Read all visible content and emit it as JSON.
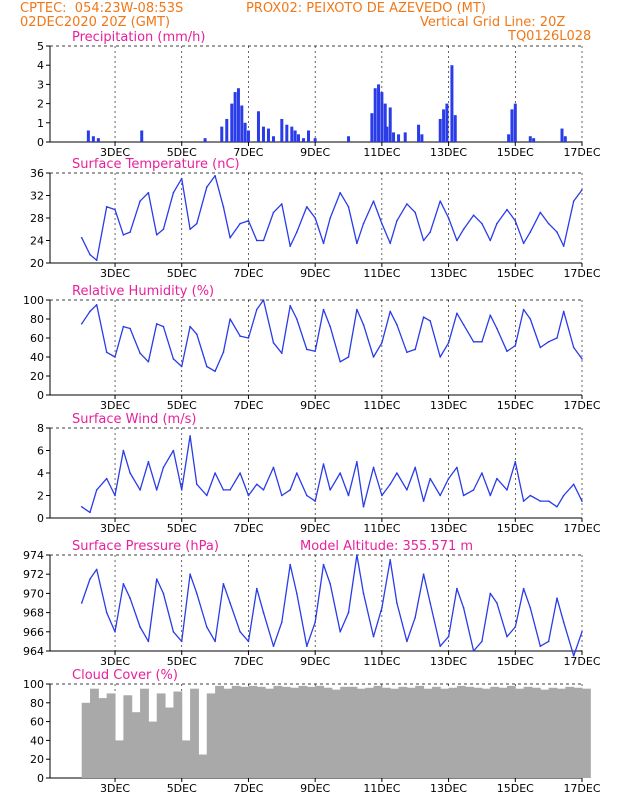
{
  "header": {
    "line1_left": "CPTEC:  054:23W-08:53S",
    "line1_right": "PROX02: PEIXOTO DE AZEVEDO (MT)",
    "line2_left": "02DEC2020 20Z (GMT)",
    "line2_right": "Vertical Grid Line: 20Z",
    "line3_right": "TQ0126L028"
  },
  "colors": {
    "header": "#f07818",
    "title": "#e8209c",
    "line": "#2a3ce8",
    "bar": "#2a3ce8",
    "cloud": "#a9a9a9"
  },
  "x_ticks": [
    "3DEC",
    "5DEC",
    "7DEC",
    "9DEC",
    "11DEC",
    "13DEC",
    "15DEC",
    "17DEC"
  ],
  "x_tick_days": [
    1,
    3,
    5,
    7,
    9,
    11,
    13,
    15
  ],
  "chart_data": [
    {
      "type": "bar",
      "title": "Precipitation (mm/h)",
      "ylim": [
        0,
        5
      ],
      "yticks": [
        "0",
        "1",
        "2",
        "3",
        "4",
        "5"
      ],
      "x_unit": "days since 02DEC2020 20Z",
      "x": [
        0.2,
        0.35,
        0.5,
        1.8,
        3.7,
        4.2,
        4.35,
        4.5,
        4.6,
        4.7,
        4.8,
        4.9,
        5.0,
        5.3,
        5.45,
        5.6,
        5.75,
        6.0,
        6.15,
        6.3,
        6.4,
        6.5,
        6.65,
        6.8,
        7.0,
        8.0,
        8.7,
        8.8,
        8.9,
        9.0,
        9.1,
        9.15,
        9.25,
        9.35,
        9.5,
        9.7,
        10.1,
        10.2,
        10.75,
        10.85,
        10.95,
        11.1,
        11.2,
        12.8,
        12.9,
        13.0,
        13.45,
        13.55,
        14.4,
        14.5
      ],
      "values": [
        0.6,
        0.3,
        0.2,
        0.6,
        0.2,
        0.8,
        1.2,
        2.0,
        2.6,
        2.8,
        1.9,
        1.0,
        0.6,
        1.6,
        0.8,
        0.7,
        0.3,
        1.2,
        0.9,
        0.8,
        0.6,
        0.4,
        0.2,
        0.6,
        0.2,
        0.3,
        1.5,
        2.8,
        3.0,
        2.6,
        2.0,
        0.8,
        1.8,
        0.5,
        0.4,
        0.5,
        0.9,
        0.4,
        1.2,
        1.7,
        2.0,
        4.0,
        1.4,
        0.4,
        1.7,
        2.0,
        0.3,
        0.2,
        0.7,
        0.3
      ]
    },
    {
      "type": "line",
      "title": "Surface Temperature (nC)",
      "ylim": [
        20,
        36
      ],
      "yticks": [
        "20",
        "24",
        "28",
        "32",
        "36"
      ],
      "x_unit": "days since 02DEC2020 20Z",
      "x": [
        0,
        0.25,
        0.45,
        0.75,
        1.0,
        1.25,
        1.45,
        1.75,
        2.0,
        2.25,
        2.45,
        2.75,
        3.0,
        3.25,
        3.45,
        3.75,
        4.0,
        4.25,
        4.45,
        4.75,
        5.0,
        5.25,
        5.45,
        5.75,
        6.0,
        6.25,
        6.45,
        6.75,
        7.0,
        7.25,
        7.45,
        7.75,
        8.0,
        8.25,
        8.45,
        8.75,
        9.0,
        9.25,
        9.45,
        9.75,
        10.0,
        10.25,
        10.45,
        10.75,
        11.0,
        11.25,
        11.45,
        11.75,
        12.0,
        12.25,
        12.45,
        12.75,
        13.0,
        13.25,
        13.45,
        13.75,
        14.0,
        14.25,
        14.45,
        14.75,
        15.0
      ],
      "values": [
        24.5,
        21.5,
        20.5,
        30.0,
        29.5,
        25.0,
        25.5,
        31.0,
        32.5,
        25.0,
        26.0,
        32.5,
        35.0,
        26.0,
        27.0,
        33.5,
        35.5,
        30.0,
        24.5,
        27.0,
        27.5,
        24.0,
        24.0,
        29.0,
        30.5,
        23.0,
        25.5,
        30.0,
        28.0,
        23.5,
        28.0,
        32.5,
        30.0,
        23.5,
        27.0,
        31.0,
        27.0,
        23.5,
        27.5,
        30.5,
        29.0,
        24.0,
        25.5,
        31.0,
        28.0,
        24.0,
        26.0,
        28.5,
        27.0,
        24.0,
        27.0,
        29.5,
        27.5,
        23.5,
        25.5,
        29.0,
        27.0,
        25.5,
        23.0,
        31.0,
        33.0
      ]
    },
    {
      "type": "line",
      "title": "Relative Humidity (%)",
      "ylim": [
        0,
        100
      ],
      "yticks": [
        "0",
        "20",
        "40",
        "60",
        "80",
        "100"
      ],
      "x_unit": "days since 02DEC2020 20Z",
      "x": [
        0,
        0.25,
        0.45,
        0.75,
        1.0,
        1.25,
        1.45,
        1.75,
        2.0,
        2.25,
        2.45,
        2.75,
        3.0,
        3.25,
        3.45,
        3.75,
        4.0,
        4.25,
        4.45,
        4.75,
        5.0,
        5.25,
        5.45,
        5.75,
        6.0,
        6.25,
        6.45,
        6.75,
        7.0,
        7.25,
        7.45,
        7.75,
        8.0,
        8.25,
        8.45,
        8.75,
        9.0,
        9.25,
        9.45,
        9.75,
        10.0,
        10.25,
        10.45,
        10.75,
        11.0,
        11.25,
        11.45,
        11.75,
        12.0,
        12.25,
        12.45,
        12.75,
        13.0,
        13.25,
        13.45,
        13.75,
        14.0,
        14.25,
        14.45,
        14.75,
        15.0
      ],
      "values": [
        75,
        88,
        95,
        45,
        40,
        72,
        70,
        44,
        35,
        75,
        72,
        38,
        30,
        72,
        64,
        30,
        25,
        45,
        80,
        62,
        60,
        90,
        100,
        55,
        44,
        94,
        80,
        48,
        46,
        90,
        72,
        35,
        40,
        90,
        74,
        40,
        55,
        88,
        74,
        45,
        48,
        82,
        78,
        40,
        55,
        86,
        74,
        56,
        56,
        84,
        70,
        46,
        52,
        90,
        80,
        50,
        56,
        60,
        88,
        50,
        38
      ]
    },
    {
      "type": "line",
      "title": "Surface Wind (m/s)",
      "ylim": [
        0,
        8
      ],
      "yticks": [
        "0",
        "2",
        "4",
        "6",
        "8"
      ],
      "x_unit": "days since 02DEC2020 20Z",
      "x": [
        0,
        0.25,
        0.45,
        0.75,
        1.0,
        1.25,
        1.45,
        1.75,
        2.0,
        2.25,
        2.45,
        2.75,
        3.0,
        3.25,
        3.45,
        3.75,
        4.0,
        4.25,
        4.45,
        4.75,
        5.0,
        5.25,
        5.45,
        5.75,
        6.0,
        6.25,
        6.45,
        6.75,
        7.0,
        7.25,
        7.45,
        7.75,
        8.0,
        8.25,
        8.45,
        8.75,
        9.0,
        9.25,
        9.45,
        9.75,
        10.0,
        10.25,
        10.45,
        10.75,
        11.0,
        11.25,
        11.45,
        11.75,
        12.0,
        12.25,
        12.45,
        12.75,
        13.0,
        13.25,
        13.45,
        13.75,
        14.0,
        14.25,
        14.45,
        14.75,
        15.0
      ],
      "values": [
        1.0,
        0.5,
        2.5,
        3.5,
        2.0,
        6.0,
        4.0,
        2.5,
        5.0,
        2.5,
        4.5,
        6.0,
        2.5,
        7.3,
        3.0,
        2.0,
        4.0,
        2.5,
        2.5,
        4.0,
        2.0,
        3.0,
        2.5,
        4.5,
        2.0,
        2.5,
        4.0,
        2.0,
        1.5,
        4.8,
        2.5,
        4.0,
        2.0,
        5.0,
        1.0,
        4.5,
        2.0,
        3.0,
        4.0,
        2.5,
        4.5,
        1.5,
        3.5,
        2.0,
        3.5,
        4.5,
        2.0,
        2.5,
        4.0,
        2.0,
        3.5,
        2.5,
        5.0,
        1.5,
        2.0,
        1.5,
        1.5,
        1.0,
        2.0,
        3.0,
        1.5
      ]
    },
    {
      "type": "line",
      "title": "Surface Pressure (hPa)",
      "annotation": "Model Altitude: 355.571 m",
      "ylim": [
        964,
        974
      ],
      "yticks": [
        "964",
        "966",
        "968",
        "970",
        "972",
        "974"
      ],
      "x_unit": "days since 02DEC2020 20Z",
      "x": [
        0,
        0.25,
        0.45,
        0.75,
        1.0,
        1.25,
        1.45,
        1.75,
        2.0,
        2.25,
        2.45,
        2.75,
        3.0,
        3.25,
        3.45,
        3.75,
        4.0,
        4.25,
        4.45,
        4.75,
        5.0,
        5.25,
        5.45,
        5.75,
        6.0,
        6.25,
        6.45,
        6.75,
        7.0,
        7.25,
        7.45,
        7.75,
        8.0,
        8.25,
        8.45,
        8.75,
        9.0,
        9.25,
        9.45,
        9.75,
        10.0,
        10.25,
        10.45,
        10.75,
        11.0,
        11.25,
        11.45,
        11.75,
        12.0,
        12.25,
        12.45,
        12.75,
        13.0,
        13.25,
        13.45,
        13.75,
        14.0,
        14.25,
        14.45,
        14.75,
        15.0
      ],
      "values": [
        969.0,
        971.5,
        972.5,
        968.0,
        966.0,
        971.0,
        969.5,
        966.5,
        965.0,
        971.5,
        970.0,
        966.0,
        965.0,
        972.0,
        970.0,
        966.5,
        965.0,
        971.0,
        969.0,
        966.0,
        965.0,
        970.5,
        968.0,
        964.5,
        967.0,
        973.0,
        970.0,
        964.5,
        967.0,
        973.0,
        971.0,
        966.0,
        968.0,
        974.0,
        970.0,
        965.5,
        968.5,
        973.5,
        969.0,
        965.0,
        967.5,
        972.0,
        969.0,
        964.5,
        965.5,
        970.5,
        968.5,
        964.0,
        965.0,
        970.0,
        969.0,
        965.5,
        966.5,
        970.5,
        968.5,
        964.5,
        965.0,
        969.5,
        967.0,
        963.5,
        966.0
      ]
    },
    {
      "type": "bar",
      "title": "Cloud Cover (%)",
      "ylim": [
        0,
        100
      ],
      "yticks": [
        "0",
        "20",
        "40",
        "60",
        "80",
        "100"
      ],
      "x_unit": "days since 02DEC2020 20Z",
      "x": [
        0,
        0.25,
        0.5,
        0.75,
        1.0,
        1.25,
        1.5,
        1.75,
        2.0,
        2.25,
        2.5,
        2.75,
        3.0,
        3.25,
        3.5,
        3.75,
        4.0,
        4.25,
        4.5,
        4.75,
        5.0,
        5.25,
        5.5,
        5.75,
        6.0,
        6.25,
        6.5,
        6.75,
        7.0,
        7.25,
        7.5,
        7.75,
        8.0,
        8.25,
        8.5,
        8.75,
        9.0,
        9.25,
        9.5,
        9.75,
        10.0,
        10.25,
        10.5,
        10.75,
        11.0,
        11.25,
        11.5,
        11.75,
        12.0,
        12.25,
        12.5,
        12.75,
        13.0,
        13.25,
        13.5,
        13.75,
        14.0,
        14.25,
        14.5,
        14.75,
        15.0
      ],
      "values": [
        80,
        95,
        85,
        90,
        40,
        88,
        70,
        95,
        60,
        90,
        75,
        92,
        40,
        95,
        25,
        90,
        98,
        95,
        98,
        97,
        98,
        97,
        95,
        98,
        97,
        96,
        98,
        97,
        98,
        96,
        94,
        97,
        97,
        95,
        96,
        98,
        96,
        95,
        97,
        96,
        98,
        95,
        97,
        95,
        96,
        98,
        97,
        96,
        95,
        97,
        96,
        98,
        95,
        97,
        96,
        94,
        96,
        95,
        97,
        96,
        95
      ]
    }
  ]
}
